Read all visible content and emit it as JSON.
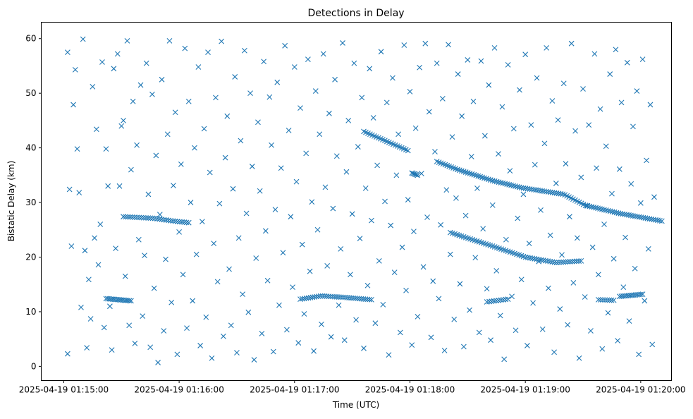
{
  "chart_data": {
    "type": "scatter",
    "title": "Detections in Delay",
    "xlabel": "Time (UTC)",
    "ylabel": "Bistatic Delay (km)",
    "x_units": "seconds after 2025-04-19 01:15:00",
    "xlim": [
      -11.7,
      316
    ],
    "ylim": [
      -2.6,
      63
    ],
    "xticks": [
      {
        "value": 0,
        "label": "2025-04-19 01:15:00"
      },
      {
        "value": 60,
        "label": "2025-04-19 01:16:00"
      },
      {
        "value": 120,
        "label": "2025-04-19 01:17:00"
      },
      {
        "value": 180,
        "label": "2025-04-19 01:18:00"
      },
      {
        "value": 240,
        "label": "2025-04-19 01:19:00"
      },
      {
        "value": 300,
        "label": "2025-04-19 01:20:00"
      }
    ],
    "yticks": [
      {
        "value": 0,
        "label": "0"
      },
      {
        "value": 10,
        "label": "10"
      },
      {
        "value": 20,
        "label": "20"
      },
      {
        "value": 30,
        "label": "30"
      },
      {
        "value": 40,
        "label": "40"
      },
      {
        "value": 50,
        "label": "50"
      },
      {
        "value": 60,
        "label": "60"
      }
    ],
    "grid": false,
    "marker": "x",
    "color": "#1f77b4",
    "tracks": [
      {
        "count": 30,
        "points": [
          [
            31,
            27.4
          ],
          [
            47,
            27.1
          ],
          [
            57,
            26.6
          ],
          [
            65,
            26.3
          ]
        ]
      },
      {
        "count": 16,
        "points": [
          [
            22,
            12.4
          ],
          [
            35,
            12.0
          ]
        ]
      },
      {
        "count": 36,
        "points": [
          [
            123,
            12.3
          ],
          [
            134,
            12.9
          ],
          [
            147,
            12.6
          ],
          [
            160,
            12.2
          ]
        ]
      },
      {
        "count": 22,
        "points": [
          [
            156,
            43
          ],
          [
            179,
            39.5
          ]
        ]
      },
      {
        "count": 6,
        "points": [
          [
            181,
            35.4
          ],
          [
            184,
            35.0
          ]
        ]
      },
      {
        "count": 110,
        "points": [
          [
            194,
            37.5
          ],
          [
            205,
            36
          ],
          [
            223,
            34
          ],
          [
            238,
            32.7
          ],
          [
            260,
            31.5
          ],
          [
            271,
            29.5
          ],
          [
            289,
            28
          ],
          [
            311,
            26.6
          ]
        ]
      },
      {
        "count": 60,
        "points": [
          [
            201,
            24.5
          ],
          [
            223,
            22
          ],
          [
            240,
            20
          ],
          [
            256,
            19
          ],
          [
            269,
            19.3
          ]
        ]
      },
      {
        "count": 10,
        "points": [
          [
            220,
            11.8
          ],
          [
            231,
            12.3
          ]
        ]
      },
      {
        "count": 8,
        "points": [
          [
            278,
            12.2
          ],
          [
            286,
            12.1
          ]
        ]
      },
      {
        "count": 14,
        "points": [
          [
            289,
            12.8
          ],
          [
            301,
            13.2
          ]
        ]
      }
    ],
    "points": [
      [
        2,
        57.5
      ],
      [
        2,
        2.3
      ],
      [
        3,
        32.4
      ],
      [
        4,
        22
      ],
      [
        5,
        47.9
      ],
      [
        6,
        54.3
      ],
      [
        7,
        39.8
      ],
      [
        8,
        31.8
      ],
      [
        9,
        10.8
      ],
      [
        10,
        59.9
      ],
      [
        11,
        21.2
      ],
      [
        12,
        3.4
      ],
      [
        13,
        15.9
      ],
      [
        14,
        8.7
      ],
      [
        15,
        51.2
      ],
      [
        16,
        23.5
      ],
      [
        17,
        43.4
      ],
      [
        18,
        18.6
      ],
      [
        19,
        26
      ],
      [
        20,
        55.7
      ],
      [
        21,
        7.1
      ],
      [
        22,
        39.8
      ],
      [
        23,
        33
      ],
      [
        24,
        11
      ],
      [
        25,
        3
      ],
      [
        26,
        54.5
      ],
      [
        27,
        21.6
      ],
      [
        28,
        57.2
      ],
      [
        29,
        33
      ],
      [
        30,
        44
      ],
      [
        31,
        45
      ],
      [
        32,
        16.5
      ],
      [
        33,
        59.6
      ],
      [
        34,
        7.5
      ],
      [
        35,
        36
      ],
      [
        36,
        48.5
      ],
      [
        37,
        4.2
      ],
      [
        38,
        40.5
      ],
      [
        39,
        23.2
      ],
      [
        40,
        51.5
      ],
      [
        41,
        9.2
      ],
      [
        42,
        20.3
      ],
      [
        43,
        55.5
      ],
      [
        44,
        31.5
      ],
      [
        45,
        3.5
      ],
      [
        46,
        49.8
      ],
      [
        47,
        14.3
      ],
      [
        48,
        38.6
      ],
      [
        49,
        0.7
      ],
      [
        50,
        27.8
      ],
      [
        51,
        52.5
      ],
      [
        52,
        6.5
      ],
      [
        53,
        19.6
      ],
      [
        54,
        42.5
      ],
      [
        55,
        59.6
      ],
      [
        56,
        11.7
      ],
      [
        57,
        33.1
      ],
      [
        58,
        46.5
      ],
      [
        59,
        2.2
      ],
      [
        60,
        24.6
      ],
      [
        61,
        37
      ],
      [
        62,
        16.8
      ],
      [
        63,
        58.2
      ],
      [
        64,
        7
      ],
      [
        65,
        48.5
      ],
      [
        66,
        30
      ],
      [
        67,
        12
      ],
      [
        68,
        40
      ],
      [
        69,
        20.5
      ],
      [
        70,
        54.8
      ],
      [
        71,
        3.8
      ],
      [
        72,
        26.5
      ],
      [
        73,
        43.5
      ],
      [
        74,
        9
      ],
      [
        75,
        57.5
      ],
      [
        76,
        35.5
      ],
      [
        77,
        1.5
      ],
      [
        78,
        22.5
      ],
      [
        79,
        49.2
      ],
      [
        80,
        15.5
      ],
      [
        81,
        29.8
      ],
      [
        82,
        59.5
      ],
      [
        83,
        5.5
      ],
      [
        84,
        38.2
      ],
      [
        85,
        45.8
      ],
      [
        86,
        17.8
      ],
      [
        87,
        7.5
      ],
      [
        88,
        32.5
      ],
      [
        89,
        53
      ],
      [
        90,
        2.5
      ],
      [
        91,
        23.5
      ],
      [
        92,
        41.3
      ],
      [
        93,
        13.2
      ],
      [
        94,
        57.8
      ],
      [
        95,
        28
      ],
      [
        96,
        9.9
      ],
      [
        97,
        50
      ],
      [
        98,
        36.6
      ],
      [
        99,
        1.2
      ],
      [
        100,
        19.8
      ],
      [
        101,
        44.7
      ],
      [
        102,
        32.1
      ],
      [
        103,
        6
      ],
      [
        104,
        55.8
      ],
      [
        105,
        24.8
      ],
      [
        106,
        15.7
      ],
      [
        107,
        49.3
      ],
      [
        108,
        40.5
      ],
      [
        109,
        2.7
      ],
      [
        110,
        28.7
      ],
      [
        111,
        52
      ],
      [
        112,
        11.2
      ],
      [
        113,
        36.3
      ],
      [
        114,
        20.8
      ],
      [
        115,
        58.7
      ],
      [
        116,
        6.7
      ],
      [
        117,
        43.2
      ],
      [
        118,
        27.4
      ],
      [
        119,
        14.5
      ],
      [
        120,
        54.8
      ],
      [
        121,
        33.8
      ],
      [
        122,
        4.3
      ],
      [
        123,
        47.3
      ],
      [
        124,
        22.3
      ],
      [
        125,
        9.6
      ],
      [
        126,
        39
      ],
      [
        127,
        56.2
      ],
      [
        128,
        17.4
      ],
      [
        129,
        30.1
      ],
      [
        130,
        2.8
      ],
      [
        131,
        50.4
      ],
      [
        132,
        25
      ],
      [
        133,
        42.5
      ],
      [
        134,
        7.7
      ],
      [
        135,
        57.2
      ],
      [
        136,
        32.8
      ],
      [
        137,
        18.4
      ],
      [
        138,
        46.3
      ],
      [
        139,
        5.4
      ],
      [
        140,
        28.9
      ],
      [
        141,
        52.5
      ],
      [
        142,
        38.5
      ],
      [
        143,
        11.2
      ],
      [
        144,
        21.5
      ],
      [
        145,
        59.2
      ],
      [
        146,
        4.8
      ],
      [
        147,
        35.6
      ],
      [
        148,
        45
      ],
      [
        149,
        16.8
      ],
      [
        150,
        27.9
      ],
      [
        151,
        55.5
      ],
      [
        152,
        8.5
      ],
      [
        153,
        40.2
      ],
      [
        154,
        23.4
      ],
      [
        155,
        49.2
      ],
      [
        156,
        3.3
      ],
      [
        157,
        32.6
      ],
      [
        158,
        14.8
      ],
      [
        159,
        54.5
      ],
      [
        160,
        26.7
      ],
      [
        161,
        45.5
      ],
      [
        162,
        7.9
      ],
      [
        163,
        36.8
      ],
      [
        164,
        19.3
      ],
      [
        165,
        57.6
      ],
      [
        166,
        11.3
      ],
      [
        167,
        30.2
      ],
      [
        168,
        48.3
      ],
      [
        169,
        2.1
      ],
      [
        170,
        25.8
      ],
      [
        171,
        52.8
      ],
      [
        172,
        17.2
      ],
      [
        173,
        35
      ],
      [
        174,
        42.5
      ],
      [
        175,
        6.2
      ],
      [
        176,
        21.8
      ],
      [
        177,
        58.8
      ],
      [
        178,
        13.9
      ],
      [
        179,
        30.5
      ],
      [
        180,
        50.3
      ],
      [
        181,
        3.9
      ],
      [
        182,
        24.7
      ],
      [
        183,
        43.6
      ],
      [
        184,
        9.1
      ],
      [
        185,
        54.7
      ],
      [
        186,
        35.3
      ],
      [
        187,
        18.2
      ],
      [
        188,
        59.1
      ],
      [
        189,
        27.3
      ],
      [
        190,
        46.6
      ],
      [
        191,
        5.3
      ],
      [
        192,
        15.6
      ],
      [
        193,
        39.3
      ],
      [
        194,
        55.5
      ],
      [
        195,
        12.4
      ],
      [
        196,
        25.9
      ],
      [
        197,
        49
      ],
      [
        198,
        2.9
      ],
      [
        199,
        32.3
      ],
      [
        200,
        58.9
      ],
      [
        201,
        20.5
      ],
      [
        202,
        42
      ],
      [
        203,
        8.6
      ],
      [
        204,
        30.8
      ],
      [
        205,
        53.5
      ],
      [
        206,
        15.1
      ],
      [
        207,
        45.8
      ],
      [
        208,
        3.6
      ],
      [
        209,
        27.6
      ],
      [
        210,
        56.1
      ],
      [
        211,
        10.3
      ],
      [
        212,
        38.4
      ],
      [
        213,
        48.5
      ],
      [
        214,
        19.9
      ],
      [
        215,
        32.6
      ],
      [
        216,
        6.2
      ],
      [
        217,
        55.9
      ],
      [
        218,
        25.2
      ],
      [
        219,
        42.2
      ],
      [
        220,
        14.2
      ],
      [
        221,
        51.5
      ],
      [
        222,
        4.8
      ],
      [
        223,
        29.5
      ],
      [
        224,
        58.3
      ],
      [
        225,
        17.5
      ],
      [
        226,
        38.9
      ],
      [
        227,
        9.3
      ],
      [
        228,
        47.5
      ],
      [
        229,
        1.3
      ],
      [
        230,
        23.2
      ],
      [
        231,
        55.2
      ],
      [
        232,
        35.8
      ],
      [
        233,
        12.8
      ],
      [
        234,
        43.5
      ],
      [
        235,
        6.6
      ],
      [
        236,
        27.1
      ],
      [
        237,
        50.6
      ],
      [
        238,
        15.9
      ],
      [
        239,
        31.5
      ],
      [
        240,
        57.1
      ],
      [
        241,
        3.8
      ],
      [
        242,
        22.5
      ],
      [
        243,
        44.2
      ],
      [
        244,
        11.6
      ],
      [
        245,
        36.9
      ],
      [
        246,
        52.8
      ],
      [
        247,
        19.2
      ],
      [
        248,
        28.6
      ],
      [
        249,
        6.8
      ],
      [
        250,
        40.8
      ],
      [
        251,
        58.3
      ],
      [
        252,
        14.3
      ],
      [
        253,
        24
      ],
      [
        254,
        48.6
      ],
      [
        255,
        2.6
      ],
      [
        256,
        33.5
      ],
      [
        257,
        45.1
      ],
      [
        258,
        10.5
      ],
      [
        259,
        20.4
      ],
      [
        260,
        51.8
      ],
      [
        261,
        37.1
      ],
      [
        262,
        7.6
      ],
      [
        263,
        27.4
      ],
      [
        264,
        59.1
      ],
      [
        265,
        15.3
      ],
      [
        266,
        43.1
      ],
      [
        267,
        23.5
      ],
      [
        268,
        1.5
      ],
      [
        269,
        34.6
      ],
      [
        270,
        50.8
      ],
      [
        271,
        12.7
      ],
      [
        272,
        29.4
      ],
      [
        273,
        44.2
      ],
      [
        274,
        6.5
      ],
      [
        275,
        21.8
      ],
      [
        276,
        57.2
      ],
      [
        277,
        36.3
      ],
      [
        278,
        16.8
      ],
      [
        279,
        47.1
      ],
      [
        280,
        3.2
      ],
      [
        281,
        26
      ],
      [
        282,
        40.3
      ],
      [
        283,
        9.8
      ],
      [
        284,
        53.5
      ],
      [
        285,
        31.6
      ],
      [
        286,
        19.7
      ],
      [
        287,
        58
      ],
      [
        288,
        4.7
      ],
      [
        289,
        36.1
      ],
      [
        290,
        48.3
      ],
      [
        291,
        14.5
      ],
      [
        292,
        23.6
      ],
      [
        293,
        55.6
      ],
      [
        294,
        8.3
      ],
      [
        295,
        33.4
      ],
      [
        296,
        43.9
      ],
      [
        297,
        17.9
      ],
      [
        298,
        50.4
      ],
      [
        299,
        2.2
      ],
      [
        300,
        29.9
      ],
      [
        301,
        56.2
      ],
      [
        302,
        12
      ],
      [
        303,
        37.7
      ],
      [
        304,
        21.5
      ],
      [
        305,
        47.9
      ],
      [
        306,
        4
      ],
      [
        307,
        31
      ]
    ]
  }
}
